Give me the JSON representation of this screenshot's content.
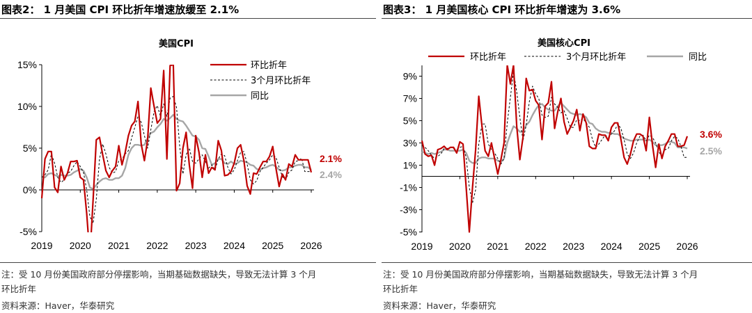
{
  "colors": {
    "red": "#c00000",
    "gray": "#a6a6a6",
    "dashed": "#000000"
  },
  "figures": [
    {
      "heading": "图表2：  1 月美国 CPI 环比折年增速放缓至 2.1%",
      "note_line1": "注：受 10 月份美国政府部分停摆影响，当期基础数据缺失，导致无法计算 3 个月",
      "note_line2": "环比折年",
      "source": "资料来源：Haver，华泰研究"
    },
    {
      "heading": "图表3：  1 月美国核心 CPI 环比折年增速为 3.6%",
      "note_line1": "注：受 10 月份美国政府部分停摆影响，当期基础数据缺失，导致无法计算 3 个月",
      "note_line2": "环比折年",
      "source": "资料来源：Haver，华泰研究"
    }
  ],
  "chart_data": [
    {
      "type": "line",
      "title": "美国CPI",
      "x_start": "2019-01",
      "x_end": "2026-01",
      "frequency": "monthly",
      "x_ticks": [
        "2019",
        "2020",
        "2021",
        "2022",
        "2023",
        "2024",
        "2025",
        "2026"
      ],
      "y_ticks": [
        "-5%",
        "0%",
        "5%",
        "10%",
        "15%"
      ],
      "ylim": [
        -5,
        15
      ],
      "y_unit": "%",
      "grid": false,
      "legend": "top-right",
      "end_labels": [
        {
          "text": "2.4%",
          "series": 2
        },
        {
          "text": "2.1%",
          "series": 0
        }
      ],
      "series": [
        {
          "name": "环比折年",
          "style": "solid-red",
          "values": [
            -1,
            3.7,
            4.6,
            4.6,
            0.3,
            -0.3,
            2.8,
            1.2,
            2.0,
            3.4,
            3.4,
            3.5,
            1.5,
            1.2,
            -2.8,
            -8,
            -1.2,
            6.0,
            6.3,
            4.2,
            2.3,
            1.5,
            2.3,
            2.8,
            5.3,
            3.0,
            4.5,
            6.5,
            7.7,
            8.2,
            10.6,
            5.5,
            3.5,
            6.0,
            12.2,
            10.0,
            8.0,
            8.5,
            14.3,
            3.7,
            14.9,
            15.0,
            -0.1,
            0.8,
            5.0,
            6.9,
            3.0,
            0.2,
            6.5,
            4.5,
            1.5,
            4.2,
            2.0,
            2.7,
            2.4,
            5.9,
            4.7,
            1.7,
            1.8,
            2.2,
            3.2,
            5.0,
            5.4,
            3.5,
            0.5,
            -0.5,
            2.0,
            1.9,
            2.7,
            3.4,
            3.4,
            4.0,
            5.2,
            2.6,
            0.4,
            1.9,
            1.2,
            3.1,
            2.8,
            4.2,
            3.6,
            3.6,
            3.6,
            3.6,
            2.1
          ]
        },
        {
          "name": "3个月环比折年",
          "style": "dashed-black",
          "values": [
            1.5,
            1.8,
            2.4,
            4.3,
            3.2,
            1.5,
            0.9,
            1.2,
            2.0,
            2.2,
            2.9,
            3.4,
            2.8,
            2.1,
            0.0,
            -3.2,
            -4.0,
            -1.1,
            3.7,
            5.5,
            4.3,
            2.7,
            2.0,
            2.2,
            3.5,
            3.7,
            4.3,
            4.7,
            6.2,
            7.5,
            8.8,
            8.1,
            6.5,
            5.0,
            7.2,
            9.4,
            10.1,
            8.8,
            10.3,
            8.8,
            11.0,
            11.2,
            9.9,
            5.2,
            1.9,
            4.2,
            5.0,
            3.4,
            3.2,
            3.7,
            4.2,
            3.4,
            2.6,
            3.0,
            2.4,
            3.7,
            4.3,
            4.1,
            2.7,
            1.9,
            2.4,
            3.5,
            4.5,
            4.6,
            3.1,
            1.2,
            0.7,
            1.1,
            2.2,
            2.7,
            3.2,
            3.6,
            4.2,
            3.9,
            2.7,
            1.6,
            1.2,
            2.1,
            2.4,
            3.4,
            3.5,
            3.8,
            2.2,
            2.2,
            2.2
          ]
        },
        {
          "name": "同比",
          "style": "solid-gray",
          "values": [
            1.5,
            1.5,
            1.9,
            2.0,
            1.8,
            1.6,
            1.8,
            1.7,
            1.7,
            1.8,
            2.1,
            2.3,
            2.5,
            2.3,
            1.5,
            0.3,
            0.1,
            0.6,
            1.0,
            1.3,
            1.4,
            1.2,
            1.2,
            1.4,
            1.4,
            1.7,
            2.6,
            4.2,
            5.0,
            5.4,
            5.4,
            5.3,
            5.4,
            6.2,
            6.8,
            7.0,
            7.5,
            7.9,
            8.5,
            8.3,
            8.6,
            9.0,
            8.5,
            8.3,
            8.2,
            7.7,
            7.1,
            6.5,
            6.4,
            6.0,
            5.0,
            4.9,
            4.0,
            3.0,
            3.2,
            3.7,
            3.7,
            3.2,
            3.1,
            3.4,
            3.1,
            3.2,
            3.5,
            3.4,
            3.3,
            3.0,
            2.9,
            2.5,
            2.4,
            2.6,
            2.7,
            2.9,
            3.0,
            2.8,
            2.4,
            2.3,
            2.4,
            2.7,
            2.7,
            2.9,
            3.0,
            3.0,
            2.7,
            2.7,
            2.4
          ]
        }
      ]
    },
    {
      "type": "line",
      "title": "美国核心CPI",
      "x_start": "2019-01",
      "x_end": "2026-01",
      "frequency": "monthly",
      "x_ticks": [
        "2019",
        "2020",
        "2021",
        "2022",
        "2023",
        "2024",
        "2025",
        "2026"
      ],
      "y_ticks": [
        "-5%",
        "-3%",
        "-1%",
        "1%",
        "3%",
        "5%",
        "7%",
        "9%"
      ],
      "ylim": [
        -5,
        10
      ],
      "y_unit": "%",
      "grid": false,
      "legend": "top",
      "end_labels": [
        {
          "text": "3.6%",
          "series": 0
        },
        {
          "text": "2.5%",
          "series": 2
        }
      ],
      "series": [
        {
          "name": "环比折年",
          "style": "solid-red",
          "values": [
            3.2,
            2.0,
            1.8,
            1.9,
            1.0,
            2.4,
            2.5,
            2.7,
            2.4,
            2.6,
            2.6,
            2.1,
            3.1,
            2.9,
            -1.0,
            -5.0,
            -1.0,
            2.4,
            7.2,
            4.5,
            2.3,
            1.8,
            3.0,
            1.6,
            0.2,
            1.5,
            3.0,
            10.0,
            8.3,
            10.0,
            4.5,
            1.5,
            3.5,
            8.8,
            7.7,
            7.8,
            6.8,
            6.4,
            3.3,
            6.3,
            6.6,
            8.5,
            4.3,
            5.8,
            7.0,
            4.9,
            3.8,
            4.4,
            5.0,
            6.0,
            4.1,
            5.6,
            4.8,
            2.7,
            2.5,
            2.5,
            3.8,
            3.7,
            3.7,
            3.2,
            4.4,
            4.8,
            4.8,
            3.3,
            1.7,
            1.1,
            2.0,
            3.2,
            3.8,
            3.8,
            3.6,
            2.3,
            5.3,
            2.8,
            0.8,
            2.9,
            1.6,
            2.7,
            3.2,
            3.8,
            3.8,
            2.7,
            2.7,
            2.8,
            3.6
          ]
        },
        {
          "name": "3个月环比折年",
          "style": "dashed-black",
          "values": [
            2.8,
            2.6,
            2.3,
            1.9,
            1.6,
            1.8,
            2.0,
            2.5,
            2.5,
            2.6,
            2.5,
            2.4,
            2.6,
            2.7,
            1.7,
            -1.0,
            -2.4,
            -1.2,
            2.9,
            4.7,
            4.7,
            2.9,
            2.4,
            2.1,
            1.6,
            1.1,
            1.6,
            4.8,
            7.1,
            9.4,
            7.6,
            5.3,
            3.2,
            4.6,
            6.7,
            8.1,
            7.4,
            7.0,
            5.5,
            5.3,
            5.4,
            7.1,
            6.5,
            6.2,
            5.7,
            5.9,
            5.2,
            4.4,
            4.4,
            5.1,
            5.0,
            5.2,
            4.8,
            4.4,
            3.3,
            2.6,
            2.9,
            3.3,
            3.7,
            3.5,
            3.8,
            4.1,
            4.7,
            4.3,
            3.3,
            2.0,
            1.6,
            2.1,
            3.0,
            3.6,
            3.7,
            3.2,
            3.7,
            3.5,
            3.0,
            2.2,
            1.8,
            2.4,
            2.5,
            3.2,
            3.6,
            3.4,
            2.7,
            1.7,
            1.7
          ]
        },
        {
          "name": "同比",
          "style": "solid-gray",
          "values": [
            2.2,
            2.1,
            2.0,
            2.1,
            2.0,
            2.1,
            2.2,
            2.4,
            2.4,
            2.3,
            2.3,
            2.3,
            2.3,
            2.4,
            2.1,
            1.4,
            1.2,
            1.2,
            1.6,
            1.7,
            1.7,
            1.6,
            1.6,
            1.6,
            1.4,
            1.3,
            1.6,
            3.0,
            3.8,
            4.5,
            4.3,
            4.0,
            4.0,
            4.6,
            4.9,
            5.5,
            6.0,
            6.4,
            6.5,
            6.2,
            6.0,
            5.9,
            5.9,
            6.3,
            6.6,
            6.3,
            6.0,
            5.7,
            5.6,
            5.5,
            5.6,
            5.5,
            5.3,
            4.8,
            4.7,
            4.3,
            4.1,
            4.0,
            4.0,
            3.9,
            3.9,
            3.8,
            3.8,
            3.6,
            3.4,
            3.3,
            3.2,
            3.2,
            3.3,
            3.3,
            3.3,
            3.2,
            3.3,
            3.1,
            2.8,
            2.8,
            2.8,
            2.9,
            3.1,
            3.1,
            3.0,
            2.6,
            2.6,
            2.6,
            2.5
          ]
        }
      ]
    }
  ]
}
